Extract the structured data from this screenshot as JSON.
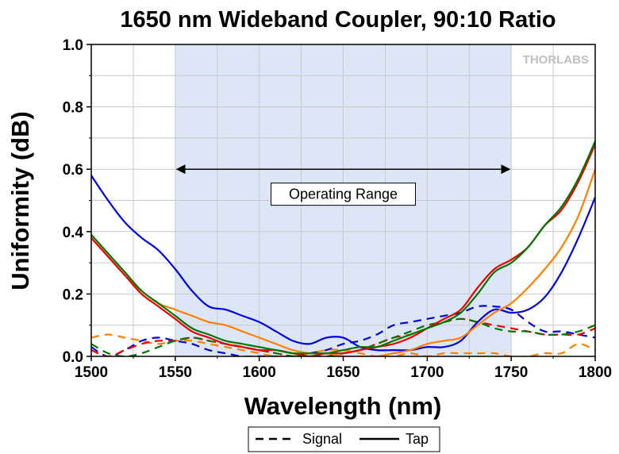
{
  "chart_data": {
    "type": "line",
    "title": "1650 nm Wideband Coupler, 90:10 Ratio",
    "xlabel": "Wavelength (nm)",
    "ylabel": "Uniformity (dB)",
    "xlim": [
      1500,
      1800
    ],
    "ylim": [
      0,
      1.0
    ],
    "xticks": [
      "1500",
      "1550",
      "1600",
      "1650",
      "1700",
      "1750",
      "1800"
    ],
    "yticks": [
      "0.0",
      "0.2",
      "0.4",
      "0.6",
      "0.8",
      "1.0"
    ],
    "xtick_values": [
      1500,
      1550,
      1600,
      1650,
      1700,
      1750,
      1800
    ],
    "ytick_values": [
      0,
      0.2,
      0.4,
      0.6,
      0.8,
      1.0
    ],
    "grid": true,
    "shaded_region": {
      "x": [
        1550,
        1750
      ],
      "color": "#dde6f7"
    },
    "annotation": {
      "text": "Operating Range",
      "x_start": 1550,
      "x_end": 1750,
      "y_arrow": 0.6,
      "y_text": 0.52
    },
    "logo_text": "THORLABS",
    "legend": {
      "position": "bottom",
      "entries": [
        {
          "label": "Signal",
          "style": "dashed"
        },
        {
          "label": "Tap",
          "style": "solid"
        }
      ]
    },
    "series": [
      {
        "color": "#0000dd",
        "style": "solid",
        "x": [
          1500,
          1510,
          1520,
          1530,
          1540,
          1550,
          1560,
          1570,
          1580,
          1590,
          1600,
          1610,
          1620,
          1630,
          1640,
          1650,
          1660,
          1670,
          1680,
          1690,
          1700,
          1710,
          1720,
          1730,
          1740,
          1750,
          1760,
          1770,
          1780,
          1790,
          1800
        ],
        "y": [
          0.58,
          0.5,
          0.43,
          0.38,
          0.34,
          0.28,
          0.21,
          0.16,
          0.15,
          0.13,
          0.11,
          0.08,
          0.05,
          0.04,
          0.06,
          0.06,
          0.03,
          0.02,
          0.02,
          0.02,
          0.03,
          0.03,
          0.05,
          0.11,
          0.15,
          0.14,
          0.15,
          0.19,
          0.27,
          0.38,
          0.51
        ]
      },
      {
        "color": "#ff8000",
        "style": "solid",
        "x": [
          1500,
          1510,
          1520,
          1530,
          1540,
          1550,
          1560,
          1570,
          1580,
          1590,
          1600,
          1610,
          1620,
          1630,
          1640,
          1650,
          1660,
          1670,
          1680,
          1690,
          1700,
          1710,
          1720,
          1730,
          1740,
          1750,
          1760,
          1770,
          1780,
          1790,
          1800
        ],
        "y": [
          0.38,
          0.32,
          0.26,
          0.21,
          0.17,
          0.15,
          0.13,
          0.11,
          0.1,
          0.08,
          0.06,
          0.04,
          0.02,
          0.01,
          0.01,
          0.0,
          0.0,
          0.0,
          0.01,
          0.02,
          0.04,
          0.05,
          0.06,
          0.1,
          0.14,
          0.17,
          0.22,
          0.28,
          0.35,
          0.45,
          0.6
        ]
      },
      {
        "color": "#ee0000",
        "style": "solid",
        "x": [
          1500,
          1510,
          1520,
          1530,
          1540,
          1550,
          1560,
          1570,
          1580,
          1590,
          1600,
          1610,
          1620,
          1630,
          1640,
          1650,
          1660,
          1670,
          1680,
          1690,
          1700,
          1710,
          1720,
          1730,
          1740,
          1750,
          1760,
          1770,
          1780,
          1790,
          1800
        ],
        "y": [
          0.38,
          0.32,
          0.26,
          0.2,
          0.16,
          0.12,
          0.08,
          0.06,
          0.04,
          0.03,
          0.02,
          0.02,
          0.01,
          0.0,
          0.01,
          0.01,
          0.02,
          0.03,
          0.04,
          0.06,
          0.09,
          0.12,
          0.15,
          0.22,
          0.28,
          0.31,
          0.35,
          0.42,
          0.47,
          0.56,
          0.68
        ]
      },
      {
        "color": "#007700",
        "style": "solid",
        "x": [
          1500,
          1510,
          1520,
          1530,
          1540,
          1550,
          1560,
          1570,
          1580,
          1590,
          1600,
          1610,
          1620,
          1630,
          1640,
          1650,
          1660,
          1670,
          1680,
          1690,
          1700,
          1710,
          1720,
          1730,
          1740,
          1750,
          1760,
          1770,
          1780,
          1790,
          1800
        ],
        "y": [
          0.39,
          0.33,
          0.27,
          0.21,
          0.17,
          0.13,
          0.09,
          0.07,
          0.05,
          0.04,
          0.03,
          0.02,
          0.01,
          0.01,
          0.01,
          0.02,
          0.03,
          0.03,
          0.05,
          0.07,
          0.09,
          0.11,
          0.14,
          0.2,
          0.27,
          0.3,
          0.35,
          0.42,
          0.48,
          0.57,
          0.69
        ]
      },
      {
        "color": "#0000dd",
        "style": "dashed",
        "x": [
          1500,
          1510,
          1520,
          1530,
          1540,
          1550,
          1560,
          1570,
          1580,
          1590,
          1600,
          1610,
          1620,
          1630,
          1640,
          1650,
          1660,
          1670,
          1680,
          1690,
          1700,
          1710,
          1720,
          1730,
          1740,
          1750,
          1760,
          1770,
          1780,
          1790,
          1800
        ],
        "y": [
          0.03,
          0.0,
          0.02,
          0.05,
          0.06,
          0.05,
          0.04,
          0.02,
          0.01,
          0.0,
          0.0,
          0.0,
          0.0,
          0.01,
          0.02,
          0.04,
          0.05,
          0.07,
          0.1,
          0.11,
          0.12,
          0.13,
          0.14,
          0.16,
          0.16,
          0.15,
          0.11,
          0.08,
          0.08,
          0.07,
          0.06
        ]
      },
      {
        "color": "#ff8000",
        "style": "dashed",
        "x": [
          1500,
          1510,
          1520,
          1530,
          1540,
          1550,
          1560,
          1570,
          1580,
          1590,
          1600,
          1610,
          1620,
          1630,
          1640,
          1650,
          1660,
          1670,
          1680,
          1690,
          1700,
          1710,
          1720,
          1730,
          1740,
          1750,
          1760,
          1770,
          1780,
          1790,
          1800
        ],
        "y": [
          0.06,
          0.07,
          0.06,
          0.05,
          0.04,
          0.05,
          0.05,
          0.04,
          0.03,
          0.02,
          0.01,
          0.0,
          0.0,
          0.01,
          0.02,
          0.02,
          0.01,
          0.0,
          0.0,
          0.01,
          0.0,
          0.01,
          0.01,
          0.01,
          0.01,
          0.0,
          0.0,
          0.01,
          0.01,
          0.04,
          0.02
        ]
      },
      {
        "color": "#ee0000",
        "style": "dashed",
        "x": [
          1500,
          1510,
          1520,
          1530,
          1540,
          1550,
          1560,
          1570,
          1580,
          1590,
          1600,
          1610,
          1620,
          1630,
          1640,
          1650,
          1660,
          1670,
          1680,
          1690,
          1700,
          1710,
          1720,
          1730,
          1740,
          1750,
          1760,
          1770,
          1780,
          1790,
          1800
        ],
        "y": [
          0.02,
          0.0,
          0.02,
          0.04,
          0.05,
          0.05,
          0.06,
          0.05,
          0.04,
          0.03,
          0.02,
          0.01,
          0.0,
          0.0,
          0.0,
          0.01,
          0.02,
          0.04,
          0.06,
          0.07,
          0.09,
          0.11,
          0.12,
          0.11,
          0.1,
          0.09,
          0.08,
          0.07,
          0.07,
          0.07,
          0.09
        ]
      },
      {
        "color": "#007700",
        "style": "dashed",
        "x": [
          1500,
          1510,
          1520,
          1530,
          1540,
          1550,
          1560,
          1570,
          1580,
          1590,
          1600,
          1610,
          1620,
          1630,
          1640,
          1650,
          1660,
          1670,
          1680,
          1690,
          1700,
          1710,
          1720,
          1730,
          1740,
          1750,
          1760,
          1770,
          1780,
          1790,
          1800
        ],
        "y": [
          0.04,
          0.01,
          0.0,
          0.01,
          0.03,
          0.05,
          0.06,
          0.05,
          0.04,
          0.03,
          0.02,
          0.01,
          0.0,
          0.0,
          0.0,
          0.01,
          0.02,
          0.04,
          0.06,
          0.08,
          0.1,
          0.11,
          0.12,
          0.11,
          0.09,
          0.08,
          0.08,
          0.07,
          0.07,
          0.08,
          0.1
        ]
      }
    ]
  }
}
